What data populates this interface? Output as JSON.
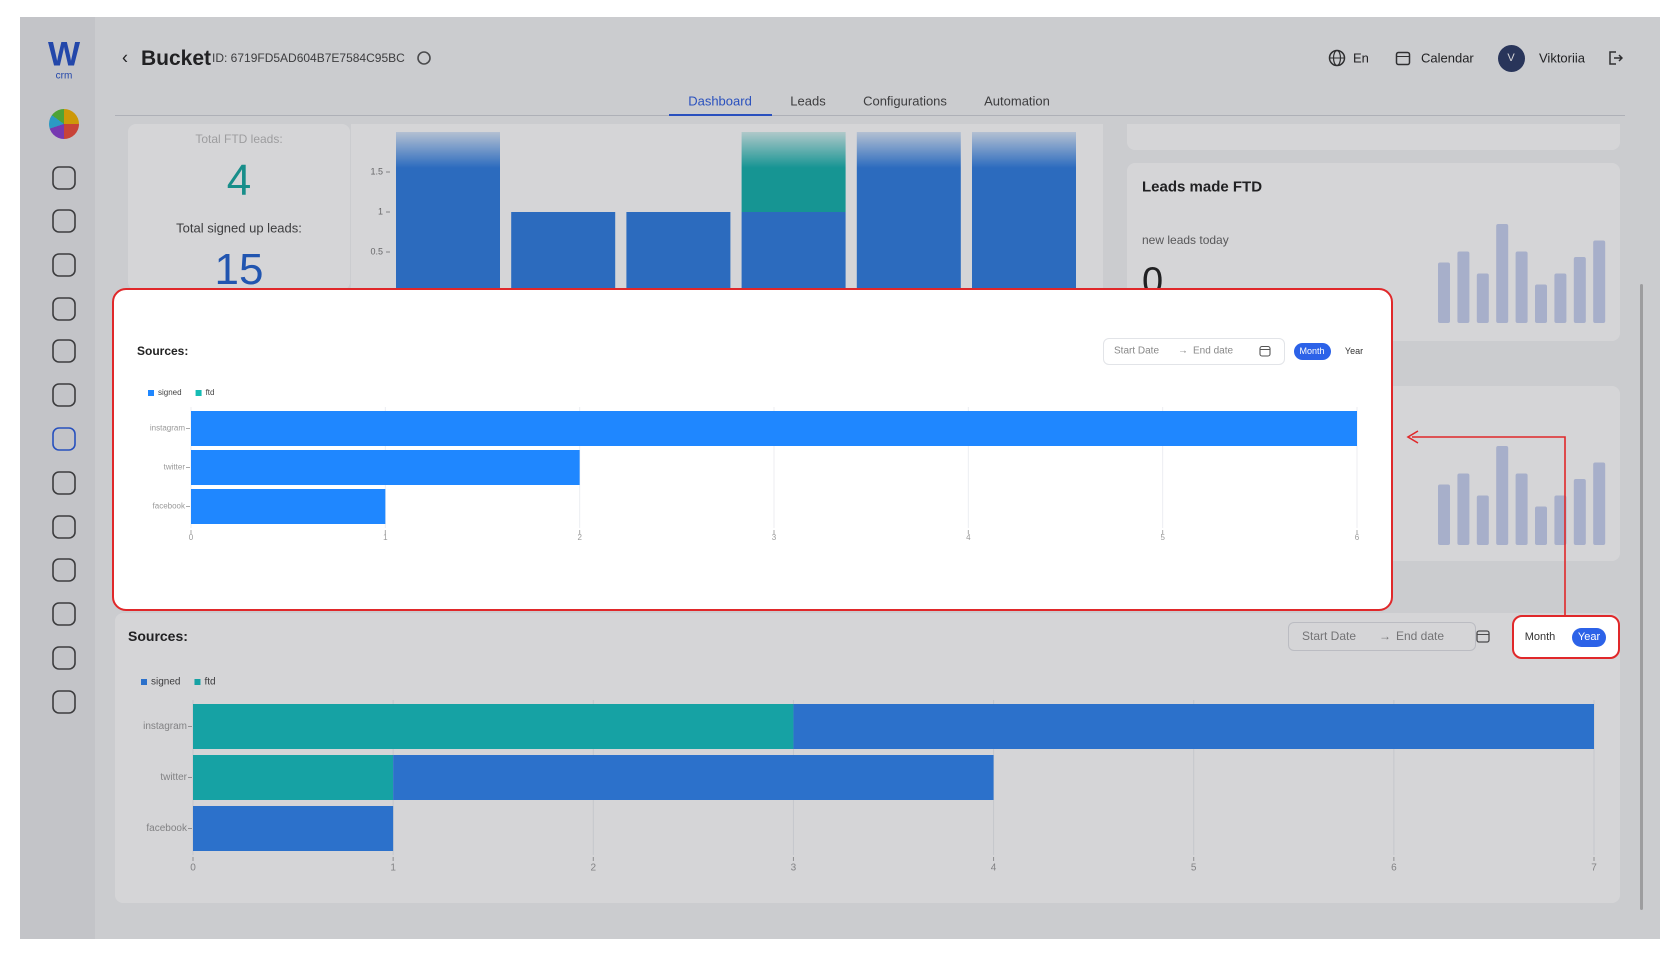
{
  "sidebar": {
    "logo": "W",
    "logo_sub": "crm"
  },
  "header": {
    "title": "Bucket",
    "id": "ID: 6719FD5AD604B7E7584C95BC",
    "language": "En",
    "calendar": "Calendar",
    "avatar": "V",
    "user": "Viktoriia"
  },
  "tabs": [
    "Dashboard",
    "Leads",
    "Configurations",
    "Automation"
  ],
  "stats": {
    "ftd_label": "Total FTD leads:",
    "ftd_value": 4,
    "signed_label": "Total signed up leads:",
    "signed_value": 15
  },
  "ftd_card": {
    "title": "Leads made FTD",
    "subtitle": "new leads today",
    "value": 0
  },
  "chart_data": [
    {
      "type": "bar",
      "orientation": "vertical",
      "categories": [
        null,
        null,
        null,
        null,
        null,
        null
      ],
      "series": [
        {
          "name": "signed",
          "color": "#2f7de1",
          "values": [
            2,
            1,
            1,
            1,
            2,
            2
          ]
        },
        {
          "name": "ftd",
          "color": "#14b0ac",
          "values": [
            0,
            0,
            0,
            1,
            0,
            0
          ]
        }
      ],
      "ylim": [
        0,
        2
      ],
      "yticks": [
        0.5,
        1,
        1.5
      ]
    },
    {
      "type": "bar",
      "orientation": "horizontal",
      "title": "Sources:",
      "start_placeholder": "Start Date",
      "separator": "→",
      "end_placeholder": "End date",
      "periods": [
        "Month",
        "Year"
      ],
      "active_period": "Month",
      "categories": [
        "instagram",
        "twitter",
        "facebook"
      ],
      "series": [
        {
          "name": "signed",
          "color": "#1f87ff",
          "values": [
            6,
            2,
            1
          ]
        },
        {
          "name": "ftd",
          "color": "#16bcb4",
          "values": [
            0,
            0,
            0
          ]
        }
      ],
      "xlim": [
        0,
        6
      ],
      "xticks": [
        0,
        1,
        2,
        3,
        4,
        5,
        6
      ]
    },
    {
      "type": "bar",
      "orientation": "horizontal",
      "title": "Sources:",
      "start_placeholder": "Start Date",
      "separator": "→",
      "end_placeholder": "End date",
      "periods": [
        "Month",
        "Year"
      ],
      "active_period": "Year",
      "categories": [
        "instagram",
        "twitter",
        "facebook"
      ],
      "series": [
        {
          "name": "signed",
          "color": "#2f84f0",
          "values": [
            4,
            3,
            1
          ]
        },
        {
          "name": "ftd",
          "color": "#14c0c0",
          "values": [
            3,
            1,
            0
          ]
        }
      ],
      "xlim": [
        0,
        7
      ],
      "xticks": [
        0,
        1,
        2,
        3,
        4,
        5,
        6,
        7
      ]
    },
    {
      "type": "sparkline",
      "color": "#c7d0ef",
      "values": [
        0.55,
        0.65,
        0.45,
        0.9,
        0.65,
        0.35,
        0.45,
        0.6,
        0.75
      ],
      "ylim": [
        0,
        1
      ]
    },
    {
      "type": "sparkline",
      "color": "#c7d0ef",
      "values": [
        0.55,
        0.65,
        0.45,
        0.9,
        0.65,
        0.35,
        0.45,
        0.6,
        0.75
      ],
      "ylim": [
        0,
        1
      ]
    }
  ]
}
